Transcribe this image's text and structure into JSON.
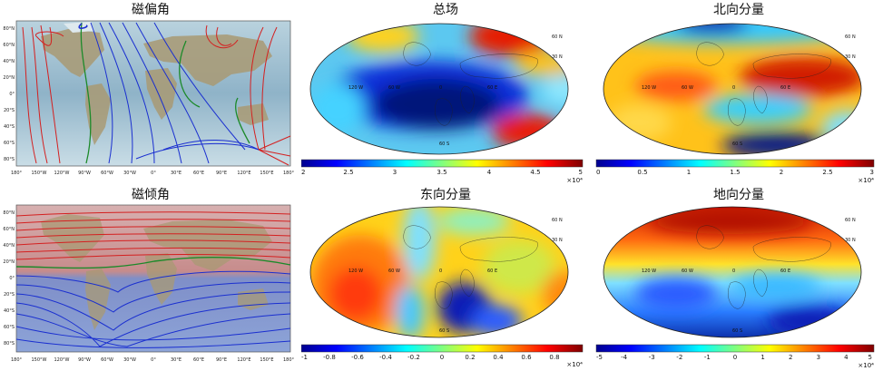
{
  "panels": {
    "declination": {
      "title": "磁偏角"
    },
    "inclination": {
      "title": "磁倾角"
    },
    "total": {
      "title": "总场"
    },
    "north": {
      "title": "北向分量"
    },
    "east": {
      "title": "东向分量"
    },
    "vertical": {
      "title": "地向分量"
    }
  },
  "world_map": {
    "x_ticks": [
      "180°",
      "150°W",
      "120°W",
      "90°W",
      "60°W",
      "30°W",
      "0°",
      "30°E",
      "60°E",
      "90°E",
      "120°E",
      "150°E",
      "180°"
    ],
    "y_ticks_top": [
      "80°N",
      "60°N",
      "40°N",
      "20°N",
      "0°",
      "20°S",
      "40°S",
      "60°S",
      "80°S"
    ],
    "y_ticks_bottom": [
      "80°N",
      "60°N",
      "40°N",
      "20°N",
      "0°",
      "20°S",
      "40°S",
      "60°S",
      "80°S"
    ]
  },
  "mollweide_labels": {
    "west": "120 W",
    "mid_west": "60 W",
    "center": "0",
    "east": "60 E",
    "north": "60 N",
    "north_mid": "30 N",
    "south": "60 S"
  },
  "colorbars": {
    "total": {
      "ticks": [
        "2",
        "2.5",
        "3",
        "3.5",
        "4",
        "4.5",
        "5"
      ],
      "exponent": "×10⁴"
    },
    "north": {
      "ticks": [
        "0",
        "0.5",
        "1",
        "1.5",
        "2",
        "2.5",
        "3"
      ],
      "exponent": "×10⁴"
    },
    "east": {
      "ticks": [
        "-1",
        "-0.8",
        "-0.6",
        "-0.4",
        "-0.2",
        "0",
        "0.2",
        "0.4",
        "0.6",
        "0.8"
      ],
      "exponent": "×10⁴"
    },
    "vertical": {
      "ticks": [
        "-5",
        "-4",
        "-3",
        "-2",
        "-1",
        "0",
        "1",
        "2",
        "3",
        "4",
        "5"
      ],
      "exponent": "×10⁴"
    }
  },
  "colors": {
    "positive_contour": "#d42020",
    "negative_contour": "#1a2fd0",
    "zero_contour": "#1c8a2a",
    "jet_low": "#00008f",
    "jet_high": "#7f0000"
  }
}
